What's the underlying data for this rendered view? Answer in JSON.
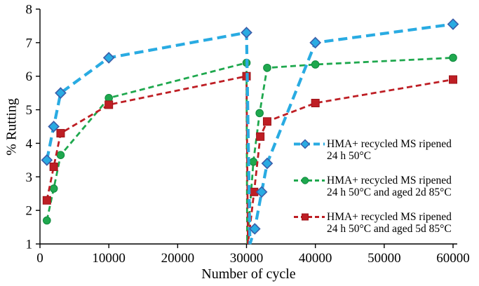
{
  "chart_data": {
    "type": "line",
    "title": "",
    "xlabel": "Number of cycle",
    "ylabel": "% Rutting",
    "grid": false,
    "legend_position": "right-middle",
    "x_axis": {
      "min": 0,
      "max": 60000,
      "ticks": [
        0,
        10000,
        20000,
        30000,
        40000,
        50000,
        60000
      ],
      "tick_labels": [
        "0",
        "10000",
        "20000",
        "30000",
        "40000",
        "50000",
        "60000"
      ]
    },
    "y_axis": {
      "min": 1,
      "max": 8,
      "ticks": [
        1,
        2,
        3,
        4,
        5,
        6,
        7,
        8
      ],
      "tick_labels": [
        "1",
        "2",
        "3",
        "4",
        "5",
        "6",
        "7",
        "8"
      ]
    },
    "series": [
      {
        "id": "ripened-24h-50c",
        "name": "HMA+ recycled MS ripened 24 h 50°C",
        "label_lines": [
          "HMA+ recycled MS ripened",
          "24 h 50°C"
        ],
        "color": "#29ABE2",
        "marker": "diamond",
        "marker_outline": "#3A5DA9",
        "points": [
          [
            1000,
            3.5
          ],
          [
            2000,
            4.5
          ],
          [
            3000,
            5.5
          ],
          [
            10000,
            6.55
          ],
          [
            30000,
            7.3
          ],
          [
            30500,
            1.0
          ],
          [
            31200,
            1.45
          ],
          [
            32200,
            2.55
          ],
          [
            33000,
            3.4
          ],
          [
            40000,
            7.0
          ],
          [
            60000,
            7.55
          ]
        ],
        "no_marker_indices": [
          5
        ]
      },
      {
        "id": "aged-2d-85c",
        "name": "HMA+ recycled MS ripened 24 h 50°C and aged 2d 85°C",
        "label_lines": [
          "HMA+ recycled MS ripened",
          "24 h 50°C and aged 2d 85°C"
        ],
        "color": "#1FA84E",
        "marker": "circle",
        "marker_outline": "#0E893E",
        "points": [
          [
            1000,
            1.7
          ],
          [
            2000,
            2.65
          ],
          [
            3000,
            3.65
          ],
          [
            10000,
            5.35
          ],
          [
            30000,
            6.4
          ],
          [
            30100,
            1.0
          ],
          [
            31000,
            3.45
          ],
          [
            31900,
            4.9
          ],
          [
            33000,
            6.25
          ],
          [
            40000,
            6.35
          ],
          [
            60000,
            6.55
          ]
        ],
        "no_marker_indices": [
          5
        ]
      },
      {
        "id": "aged-5d-85c",
        "name": "HMA+ recycled MS ripened 24 h 50°C and aged 5d 85°C",
        "label_lines": [
          "HMA+ recycled MS ripened",
          "24 h 50°C and aged 5d 85°C"
        ],
        "color": "#BE1E24",
        "marker": "square",
        "marker_outline": "#9C1318",
        "points": [
          [
            1000,
            2.3
          ],
          [
            2000,
            3.3
          ],
          [
            3000,
            4.3
          ],
          [
            10000,
            5.15
          ],
          [
            30000,
            6.0
          ],
          [
            30200,
            1.0
          ],
          [
            31100,
            2.55
          ],
          [
            32000,
            4.2
          ],
          [
            33000,
            4.65
          ],
          [
            40000,
            5.2
          ],
          [
            60000,
            5.9
          ]
        ],
        "no_marker_indices": [
          5
        ]
      }
    ]
  }
}
